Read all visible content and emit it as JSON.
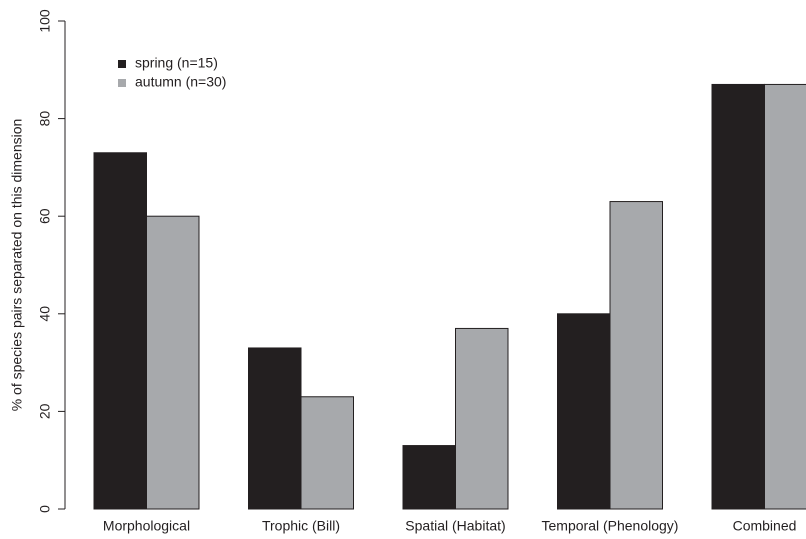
{
  "chart_data": {
    "type": "bar",
    "y_label": "% of species pairs separated on this dimension",
    "categories": [
      "Morphological",
      "Trophic (Bill)",
      "Spatial (Habitat)",
      "Temporal (Phenology)",
      "Combined"
    ],
    "series": [
      {
        "name": "spring (n=15)",
        "color": "#231f20",
        "values": [
          73,
          33,
          13,
          40,
          87
        ]
      },
      {
        "name": "autumn (n=30)",
        "color": "#a7a9ac",
        "values": [
          60,
          23,
          37,
          63,
          87
        ]
      }
    ],
    "ylim": [
      0,
      100
    ],
    "yticks": [
      0,
      20,
      40,
      60,
      80,
      100
    ],
    "legend": "upper left"
  }
}
